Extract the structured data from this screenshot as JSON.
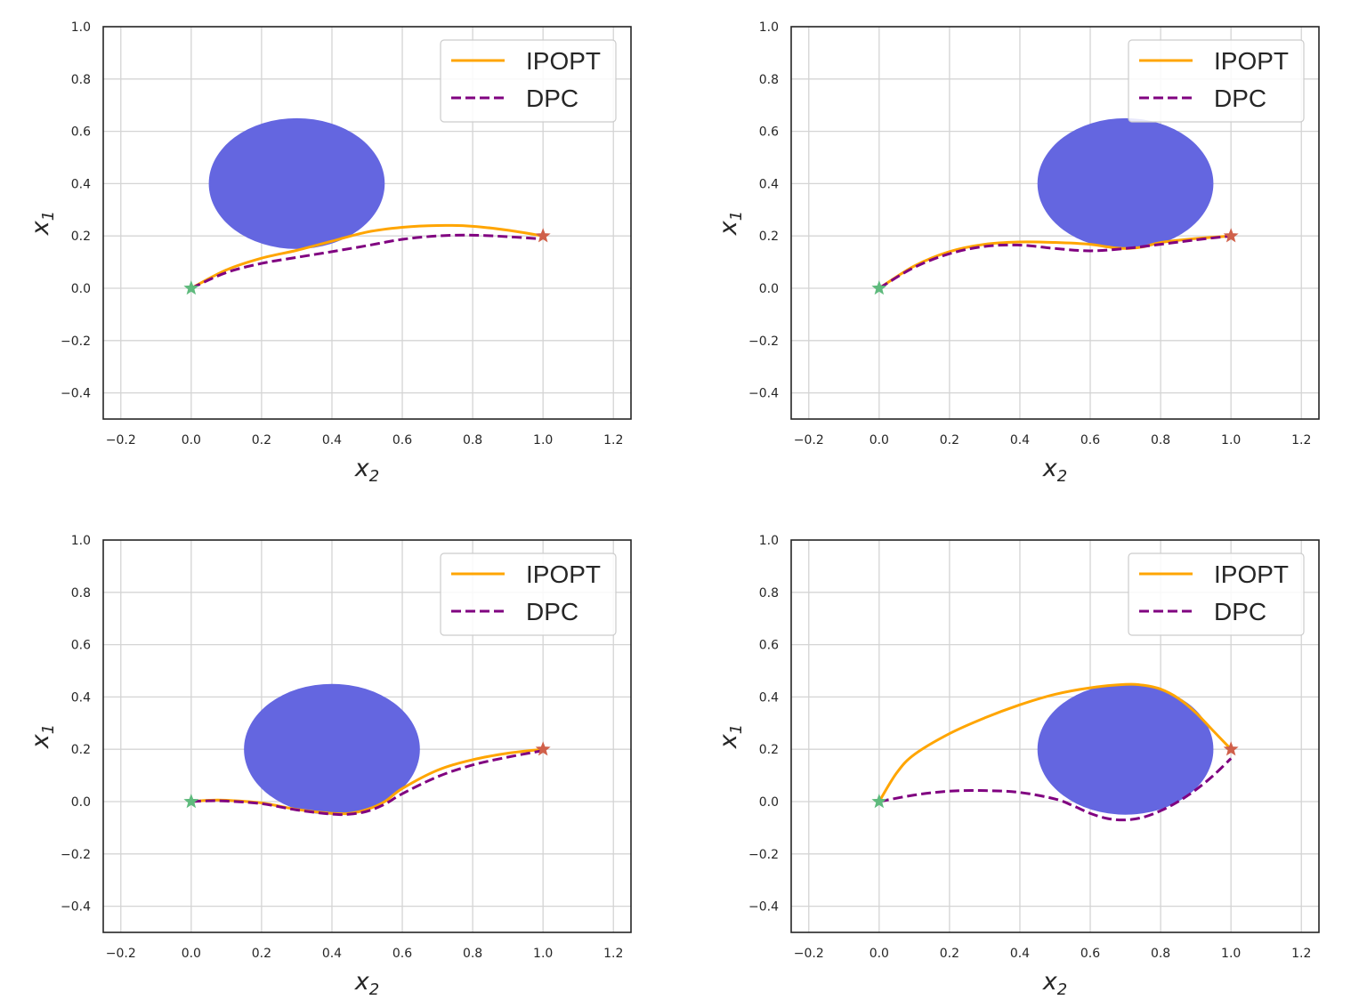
{
  "chart_data": [
    {
      "type": "line",
      "title": "",
      "xlabel": "x_2",
      "ylabel": "x_1",
      "xlim": [
        -0.25,
        1.25
      ],
      "ylim": [
        -0.5,
        1.0
      ],
      "xticks": [
        -0.2,
        0.0,
        0.2,
        0.4,
        0.6,
        0.8,
        1.0,
        1.2
      ],
      "yticks": [
        -0.4,
        -0.2,
        0.0,
        0.2,
        0.4,
        0.6,
        0.8,
        1.0
      ],
      "xtick_labels": [
        "−0.2",
        "0.0",
        "0.2",
        "0.4",
        "0.6",
        "0.8",
        "1.0",
        "1.2"
      ],
      "ytick_labels": [
        "−0.4",
        "−0.2",
        "0.0",
        "0.2",
        "0.4",
        "0.6",
        "0.8",
        "1.0"
      ],
      "grid": true,
      "legend_position": "top-right",
      "obstacle": {
        "center_x2": 0.3,
        "center_x1": 0.4,
        "radius": 0.25,
        "color": "#6466e0"
      },
      "start_marker": {
        "x2": 0.0,
        "x1": 0.0,
        "color": "#5fba7d"
      },
      "goal_marker": {
        "x2": 1.0,
        "x1": 0.2,
        "color": "#d0604a"
      },
      "series": [
        {
          "name": "IPOPT",
          "color": "#ffa500",
          "dash": "solid",
          "x": [
            0.0,
            0.1,
            0.2,
            0.3,
            0.4,
            0.5,
            0.6,
            0.7,
            0.8,
            0.9,
            1.0
          ],
          "y": [
            0.0,
            0.07,
            0.115,
            0.145,
            0.18,
            0.215,
            0.233,
            0.24,
            0.237,
            0.222,
            0.2
          ]
        },
        {
          "name": "DPC",
          "color": "#800080",
          "dash": "dashed",
          "x": [
            0.0,
            0.1,
            0.2,
            0.3,
            0.4,
            0.5,
            0.6,
            0.7,
            0.8,
            0.9,
            0.98
          ],
          "y": [
            0.0,
            0.06,
            0.095,
            0.118,
            0.14,
            0.163,
            0.187,
            0.2,
            0.203,
            0.197,
            0.19
          ]
        }
      ]
    },
    {
      "type": "line",
      "title": "",
      "xlabel": "x_2",
      "ylabel": "x_1",
      "xlim": [
        -0.25,
        1.25
      ],
      "ylim": [
        -0.5,
        1.0
      ],
      "xticks": [
        -0.2,
        0.0,
        0.2,
        0.4,
        0.6,
        0.8,
        1.0,
        1.2
      ],
      "yticks": [
        -0.4,
        -0.2,
        0.0,
        0.2,
        0.4,
        0.6,
        0.8,
        1.0
      ],
      "xtick_labels": [
        "−0.2",
        "0.0",
        "0.2",
        "0.4",
        "0.6",
        "0.8",
        "1.0",
        "1.2"
      ],
      "ytick_labels": [
        "−0.4",
        "−0.2",
        "0.0",
        "0.2",
        "0.4",
        "0.6",
        "0.8",
        "1.0"
      ],
      "grid": true,
      "legend_position": "top-right",
      "obstacle": {
        "center_x2": 0.7,
        "center_x1": 0.4,
        "radius": 0.25,
        "color": "#6466e0"
      },
      "start_marker": {
        "x2": 0.0,
        "x1": 0.0,
        "color": "#5fba7d"
      },
      "goal_marker": {
        "x2": 1.0,
        "x1": 0.2,
        "color": "#d0604a"
      },
      "series": [
        {
          "name": "IPOPT",
          "color": "#ffa500",
          "dash": "solid",
          "x": [
            0.0,
            0.1,
            0.2,
            0.3,
            0.4,
            0.5,
            0.6,
            0.65,
            0.7,
            0.75,
            0.8,
            0.9,
            1.0
          ],
          "y": [
            0.0,
            0.085,
            0.14,
            0.168,
            0.177,
            0.175,
            0.168,
            0.158,
            0.152,
            0.158,
            0.175,
            0.19,
            0.2
          ]
        },
        {
          "name": "DPC",
          "color": "#800080",
          "dash": "dashed",
          "x": [
            0.0,
            0.1,
            0.2,
            0.3,
            0.4,
            0.5,
            0.6,
            0.7,
            0.8,
            0.9,
            1.0
          ],
          "y": [
            0.0,
            0.08,
            0.132,
            0.16,
            0.165,
            0.152,
            0.143,
            0.152,
            0.168,
            0.185,
            0.2
          ]
        }
      ]
    },
    {
      "type": "line",
      "title": "",
      "xlabel": "x_2",
      "ylabel": "x_1",
      "xlim": [
        -0.25,
        1.25
      ],
      "ylim": [
        -0.5,
        1.0
      ],
      "xticks": [
        -0.2,
        0.0,
        0.2,
        0.4,
        0.6,
        0.8,
        1.0,
        1.2
      ],
      "yticks": [
        -0.4,
        -0.2,
        0.0,
        0.2,
        0.4,
        0.6,
        0.8,
        1.0
      ],
      "xtick_labels": [
        "−0.2",
        "0.0",
        "0.2",
        "0.4",
        "0.6",
        "0.8",
        "1.0",
        "1.2"
      ],
      "ytick_labels": [
        "−0.4",
        "−0.2",
        "0.0",
        "0.2",
        "0.4",
        "0.6",
        "0.8",
        "1.0"
      ],
      "grid": true,
      "legend_position": "top-right",
      "obstacle": {
        "center_x2": 0.4,
        "center_x1": 0.2,
        "radius": 0.25,
        "color": "#6466e0"
      },
      "start_marker": {
        "x2": 0.0,
        "x1": 0.0,
        "color": "#5fba7d"
      },
      "goal_marker": {
        "x2": 1.0,
        "x1": 0.2,
        "color": "#d0604a"
      },
      "series": [
        {
          "name": "IPOPT",
          "color": "#ffa500",
          "dash": "solid",
          "x": [
            0.0,
            0.05,
            0.1,
            0.2,
            0.3,
            0.4,
            0.45,
            0.5,
            0.55,
            0.6,
            0.7,
            0.8,
            0.9,
            1.0
          ],
          "y": [
            0.0,
            0.005,
            0.005,
            -0.005,
            -0.03,
            -0.045,
            -0.045,
            -0.03,
            0.0,
            0.05,
            0.12,
            0.16,
            0.185,
            0.2
          ]
        },
        {
          "name": "DPC",
          "color": "#800080",
          "dash": "dashed",
          "x": [
            0.0,
            0.05,
            0.1,
            0.2,
            0.3,
            0.4,
            0.45,
            0.5,
            0.55,
            0.6,
            0.7,
            0.8,
            0.9,
            1.0
          ],
          "y": [
            0.0,
            0.003,
            0.002,
            -0.008,
            -0.032,
            -0.048,
            -0.048,
            -0.037,
            -0.01,
            0.03,
            0.095,
            0.14,
            0.17,
            0.195
          ]
        }
      ]
    },
    {
      "type": "line",
      "title": "",
      "xlabel": "x_2",
      "ylabel": "x_1",
      "xlim": [
        -0.25,
        1.25
      ],
      "ylim": [
        -0.5,
        1.0
      ],
      "xticks": [
        -0.2,
        0.0,
        0.2,
        0.4,
        0.6,
        0.8,
        1.0,
        1.2
      ],
      "yticks": [
        -0.4,
        -0.2,
        0.0,
        0.2,
        0.4,
        0.6,
        0.8,
        1.0
      ],
      "xtick_labels": [
        "−0.2",
        "0.0",
        "0.2",
        "0.4",
        "0.6",
        "0.8",
        "1.0",
        "1.2"
      ],
      "ytick_labels": [
        "−0.4",
        "−0.2",
        "0.0",
        "0.2",
        "0.4",
        "0.6",
        "0.8",
        "1.0"
      ],
      "grid": true,
      "legend_position": "top-right",
      "obstacle": {
        "center_x2": 0.7,
        "center_x1": 0.2,
        "radius": 0.25,
        "color": "#6466e0"
      },
      "start_marker": {
        "x2": 0.0,
        "x1": 0.0,
        "color": "#5fba7d"
      },
      "goal_marker": {
        "x2": 1.0,
        "x1": 0.2,
        "color": "#d0604a"
      },
      "series": [
        {
          "name": "IPOPT",
          "color": "#ffa500",
          "dash": "solid",
          "x": [
            0.0,
            0.05,
            0.1,
            0.2,
            0.3,
            0.4,
            0.5,
            0.6,
            0.7,
            0.75,
            0.8,
            0.85,
            0.9,
            0.95,
            1.0
          ],
          "y": [
            0.0,
            0.11,
            0.18,
            0.26,
            0.32,
            0.37,
            0.41,
            0.435,
            0.448,
            0.445,
            0.43,
            0.395,
            0.34,
            0.27,
            0.2
          ]
        },
        {
          "name": "DPC",
          "color": "#800080",
          "dash": "dashed",
          "x": [
            0.0,
            0.1,
            0.2,
            0.3,
            0.4,
            0.5,
            0.55,
            0.6,
            0.65,
            0.7,
            0.75,
            0.8,
            0.85,
            0.9,
            0.95,
            1.0
          ],
          "y": [
            0.0,
            0.025,
            0.04,
            0.042,
            0.035,
            0.01,
            -0.015,
            -0.045,
            -0.065,
            -0.07,
            -0.06,
            -0.035,
            0.0,
            0.045,
            0.1,
            0.165
          ]
        }
      ]
    }
  ]
}
